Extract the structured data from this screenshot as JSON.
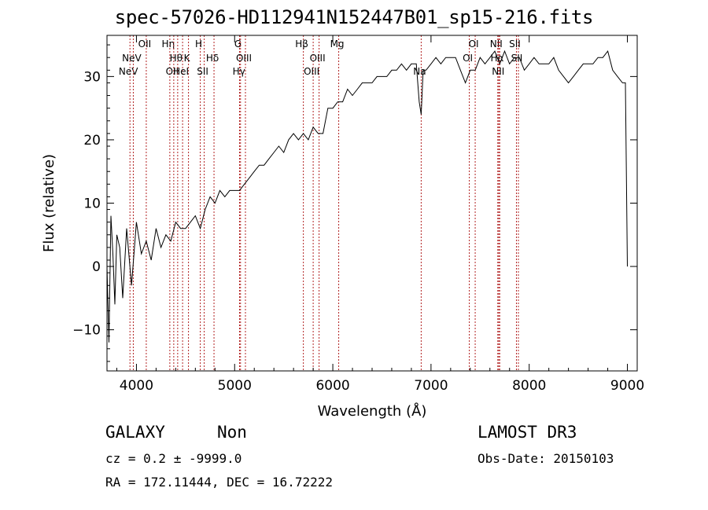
{
  "chart_data": {
    "type": "line",
    "title": "spec-57026-HD112941N152447B01_sp15-216.fits",
    "xlabel": "Wavelength (Å)",
    "ylabel": "Flux (relative)",
    "xlim": [
      3700,
      9100
    ],
    "ylim": [
      -16.5,
      36.5
    ],
    "xticks": [
      4000,
      5000,
      6000,
      7000,
      8000,
      9000
    ],
    "yticks": [
      -10,
      0,
      10,
      20,
      30
    ],
    "grid": false,
    "series": [
      {
        "x": [
          3700,
          3720,
          3740,
          3760,
          3780,
          3800,
          3830,
          3860,
          3900,
          3950,
          4000,
          4050,
          4100,
          4150,
          4200,
          4250,
          4300,
          4350,
          4400,
          4450,
          4500,
          4550,
          4600,
          4650,
          4700,
          4750,
          4800,
          4850,
          4900,
          4950,
          5000,
          5050,
          5100,
          5150,
          5200,
          5250,
          5300,
          5350,
          5400,
          5450,
          5500,
          5550,
          5600,
          5650,
          5700,
          5750,
          5800,
          5850,
          5900,
          5950,
          6000,
          6050,
          6100,
          6150,
          6200,
          6250,
          6300,
          6350,
          6400,
          6450,
          6500,
          6550,
          6600,
          6650,
          6700,
          6750,
          6800,
          6850,
          6880,
          6900,
          6920,
          6950,
          7000,
          7050,
          7100,
          7150,
          7200,
          7250,
          7300,
          7350,
          7400,
          7450,
          7500,
          7550,
          7600,
          7650,
          7700,
          7750,
          7800,
          7850,
          7900,
          7950,
          8000,
          8050,
          8100,
          8150,
          8200,
          8250,
          8300,
          8350,
          8400,
          8450,
          8500,
          8550,
          8600,
          8650,
          8700,
          8750,
          8800,
          8850,
          8900,
          8950,
          8980,
          9000
        ],
        "y": [
          0,
          -12,
          8,
          2,
          -6,
          5,
          3,
          -5,
          6,
          -3,
          7,
          2,
          4,
          1,
          6,
          3,
          5,
          4,
          7,
          6,
          6,
          7,
          8,
          6,
          9,
          11,
          10,
          12,
          11,
          12,
          12,
          12,
          13,
          14,
          15,
          16,
          16,
          17,
          18,
          19,
          18,
          20,
          21,
          20,
          21,
          20,
          22,
          21,
          21,
          25,
          25,
          26,
          26,
          28,
          27,
          28,
          29,
          29,
          29,
          30,
          30,
          30,
          31,
          31,
          32,
          31,
          32,
          32,
          26,
          24,
          31,
          31,
          32,
          33,
          32,
          33,
          33,
          33,
          31,
          29,
          31,
          31,
          33,
          32,
          33,
          34,
          32,
          34,
          32,
          33,
          33,
          31,
          32,
          33,
          32,
          32,
          32,
          33,
          31,
          30,
          29,
          30,
          31,
          32,
          32,
          32,
          33,
          33,
          34,
          31,
          30,
          29,
          29,
          0
        ]
      }
    ],
    "lines": [
      {
        "wavelength": 3934,
        "label": "NeV",
        "row": 2
      },
      {
        "wavelength": 3968,
        "label": "NeV",
        "row": 1
      },
      {
        "wavelength": 4100,
        "label": "OII",
        "row": 0
      },
      {
        "wavelength": 4340,
        "label": "Hη",
        "row": 0
      },
      {
        "wavelength": 4380,
        "label": "OII",
        "row": 2
      },
      {
        "wavelength": 4420,
        "label": "Hθ",
        "row": 1
      },
      {
        "wavelength": 4470,
        "label": "HeI",
        "row": 2
      },
      {
        "wavelength": 4530,
        "label": "K",
        "row": 1
      },
      {
        "wavelength": 4650,
        "label": "H",
        "row": 0
      },
      {
        "wavelength": 4690,
        "label": "SII",
        "row": 2
      },
      {
        "wavelength": 4790,
        "label": "Hδ",
        "row": 1
      },
      {
        "wavelength": 5050,
        "label": "G",
        "row": 0
      },
      {
        "wavelength": 5060,
        "label": "Hγ",
        "row": 2
      },
      {
        "wavelength": 5110,
        "label": "OIII",
        "row": 1
      },
      {
        "wavelength": 5700,
        "label": "Hβ",
        "row": 0
      },
      {
        "wavelength": 5800,
        "label": "OIII",
        "row": 2
      },
      {
        "wavelength": 5860,
        "label": "OIII",
        "row": 1
      },
      {
        "wavelength": 6060,
        "label": "Mg",
        "row": 0
      },
      {
        "wavelength": 6900,
        "label": "Na",
        "row": 2
      },
      {
        "wavelength": 7390,
        "label": "OI",
        "row": 1
      },
      {
        "wavelength": 7450,
        "label": "OI",
        "row": 0
      },
      {
        "wavelength": 7680,
        "label": "NII",
        "row": 0
      },
      {
        "wavelength": 7690,
        "label": "Hα",
        "row": 1
      },
      {
        "wavelength": 7700,
        "label": "NII",
        "row": 2
      },
      {
        "wavelength": 7870,
        "label": "SII",
        "row": 0
      },
      {
        "wavelength": 7890,
        "label": "SII",
        "row": 1
      }
    ]
  },
  "footer": {
    "class_label": "GALAXY",
    "subclass_label": "Non",
    "survey": "LAMOST DR3",
    "cz_text": "cz = 0.2 ± -9999.0",
    "obs_date": "Obs-Date: 20150103",
    "coords": "RA = 172.11444, DEC =  16.72222"
  }
}
